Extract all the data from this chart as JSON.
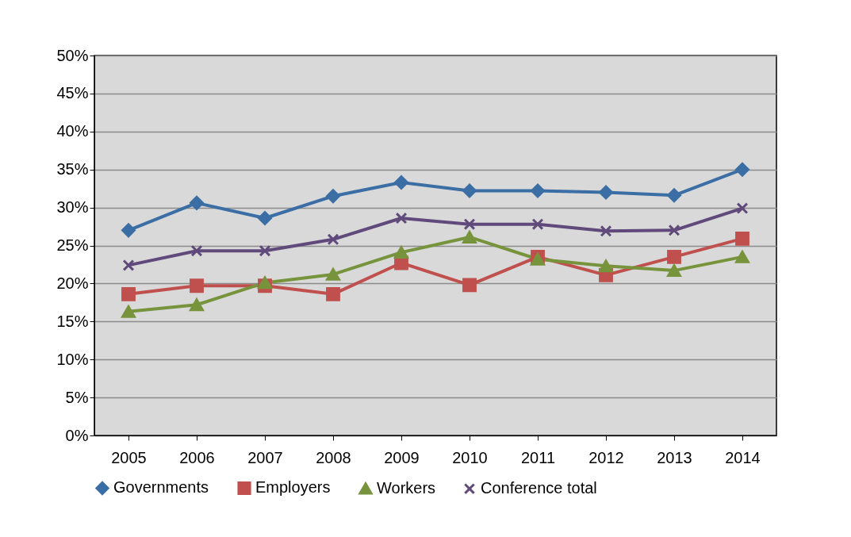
{
  "chart_data": {
    "type": "line",
    "categories": [
      "2005",
      "2006",
      "2007",
      "2008",
      "2009",
      "2010",
      "2011",
      "2012",
      "2013",
      "2014"
    ],
    "series": [
      {
        "name": "Governments",
        "color": "#3a6ea5",
        "marker": "diamond",
        "values": [
          27.0,
          30.6,
          28.6,
          31.5,
          33.3,
          32.2,
          32.2,
          32.0,
          31.6,
          35.0
        ]
      },
      {
        "name": "Employers",
        "color": "#c0504d",
        "marker": "square",
        "values": [
          18.6,
          19.7,
          19.7,
          18.6,
          22.7,
          19.8,
          23.5,
          21.1,
          23.5,
          25.9
        ]
      },
      {
        "name": "Workers",
        "color": "#77933c",
        "marker": "triangle",
        "values": [
          16.3,
          17.2,
          20.1,
          21.2,
          24.1,
          26.1,
          23.2,
          22.3,
          21.7,
          23.5
        ]
      },
      {
        "name": "Conference total",
        "color": "#604a7b",
        "marker": "cross",
        "values": [
          22.4,
          24.3,
          24.3,
          25.8,
          28.6,
          27.8,
          27.8,
          26.9,
          27.0,
          29.9
        ]
      }
    ],
    "ylim": [
      0,
      50
    ],
    "yticks": [
      {
        "value": 0,
        "label": "0%"
      },
      {
        "value": 5,
        "label": "5%"
      },
      {
        "value": 10,
        "label": "10%"
      },
      {
        "value": 15,
        "label": "15%"
      },
      {
        "value": 20,
        "label": "20%"
      },
      {
        "value": 25,
        "label": "25%"
      },
      {
        "value": 30,
        "label": "30%"
      },
      {
        "value": 35,
        "label": "35%"
      },
      {
        "value": 40,
        "label": "40%"
      },
      {
        "value": 45,
        "label": "45%"
      },
      {
        "value": 50,
        "label": "50%"
      }
    ],
    "grid": "y",
    "legend": "bottom",
    "line_style": "solid"
  }
}
